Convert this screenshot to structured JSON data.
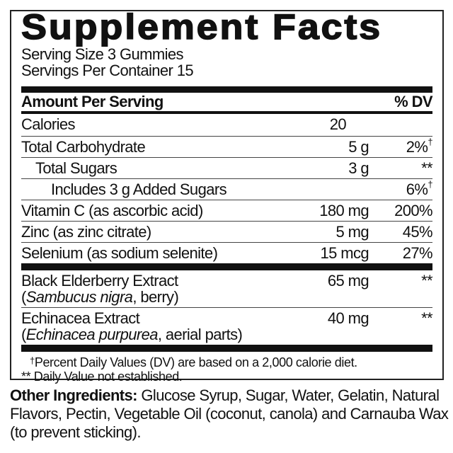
{
  "title": "Supplement Facts",
  "serving_size": "Serving Size 3 Gummies",
  "servings_per_container": "Servings Per Container 15",
  "header": {
    "amount": "Amount Per Serving",
    "dv": "% DV"
  },
  "rows": [
    {
      "name": "Calories",
      "amount": "20",
      "dv": ""
    },
    {
      "name": "Total Carbohydrate",
      "amount": "5 g",
      "dv": "2%",
      "dv_mark": "†"
    },
    {
      "name": "Total Sugars",
      "amount": "3 g",
      "dv": "**"
    },
    {
      "name": "Includes 3 g Added Sugars",
      "amount": "",
      "dv": "6%",
      "dv_mark": "†"
    },
    {
      "name": "Vitamin C (as ascorbic acid)",
      "amount": "180 mg",
      "dv": "200%"
    },
    {
      "name": "Zinc (as zinc citrate)",
      "amount": "5 mg",
      "dv": "45%"
    },
    {
      "name": "Selenium (as sodium selenite)",
      "amount": "15 mcg",
      "dv": "27%"
    }
  ],
  "extracts": [
    {
      "name": "Black Elderberry Extract",
      "latin": "Sambucus nigra",
      "part": ", berry)",
      "amount": "65 mg",
      "dv": "**"
    },
    {
      "name": "Echinacea Extract",
      "latin": "Echinacea purpurea",
      "part": ", aerial parts)",
      "amount": "40 mg",
      "dv": "**"
    }
  ],
  "footnotes": {
    "dagger": "†",
    "dv_note": "Percent Daily Values (DV) are based on a 2,000 calorie diet.",
    "not_established": "** Daily Value not established."
  },
  "other_ingredients": {
    "label": "Other Ingredients:",
    "text": " Glucose Syrup, Sugar, Water, Gelatin, Natural Flavors, Pectin, Vegetable Oil (coconut, canola) and Carnauba Wax (to prevent sticking)."
  }
}
